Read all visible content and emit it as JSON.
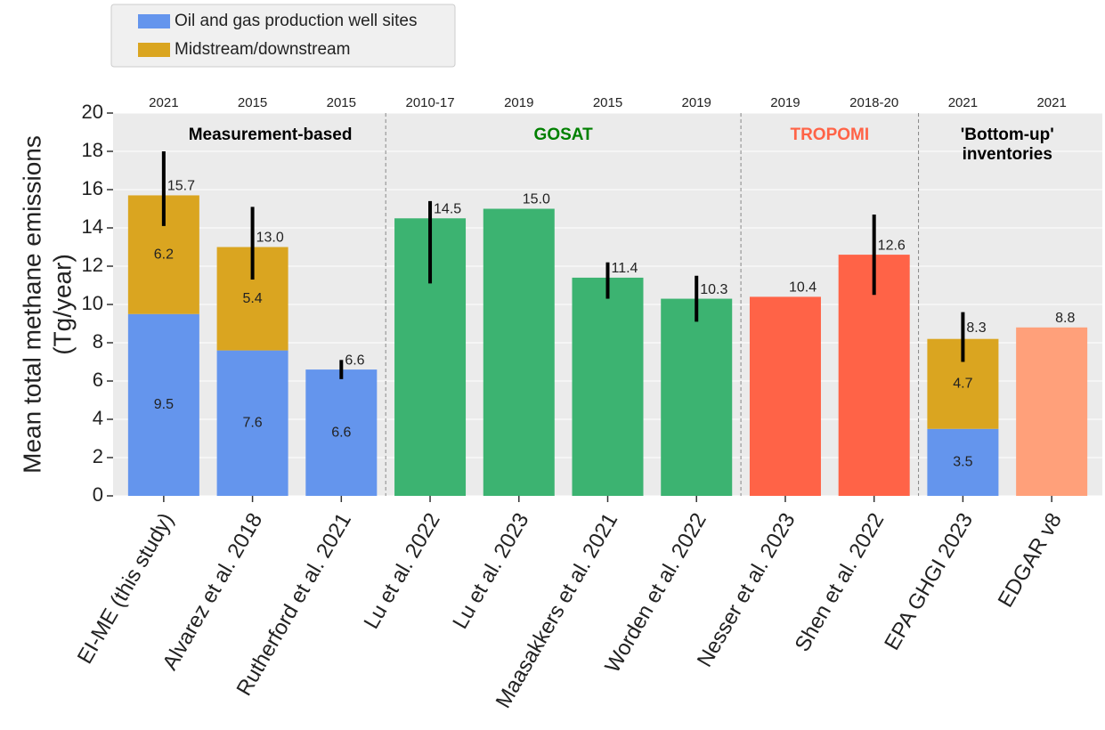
{
  "chart_data": {
    "type": "stacked_bar",
    "ylabel": [
      "Mean total methane emissions",
      "(Tg/year)"
    ],
    "categories": [
      "EI-ME (this study)",
      "Alvarez et al. 2018",
      "Rutherford et al. 2021",
      "Lu et al. 2022",
      "Lu et al. 2023",
      "Maasakkers et al. 2021",
      "Worden et al. 2022",
      "Nesser et al. 2023",
      "Shen et al. 2022",
      "EPA GHGI 2023",
      "EDGAR v8"
    ],
    "years": [
      "2021",
      "2015",
      "2015",
      "2010-17",
      "2019",
      "2015",
      "2019",
      "2019",
      "2018-20",
      "2021",
      "2021"
    ],
    "series": [
      {
        "name": "Oil and gas production well sites",
        "color": "#6495ed",
        "values": [
          9.5,
          7.6,
          6.6,
          null,
          null,
          null,
          null,
          null,
          null,
          3.5,
          null
        ]
      },
      {
        "name": "Midstream/downstream",
        "color": "#daa520",
        "values": [
          6.2,
          5.4,
          null,
          null,
          null,
          null,
          null,
          null,
          null,
          4.7,
          null
        ]
      }
    ],
    "totals": {
      "values": [
        15.7,
        13.0,
        6.6,
        14.5,
        15.0,
        11.4,
        10.3,
        10.4,
        12.6,
        8.3,
        8.8
      ],
      "value_labels": [
        "15.7",
        "13.0",
        "6.6",
        "14.5",
        "15.0",
        "11.4",
        "10.3",
        "10.4",
        "12.6",
        "8.3",
        "8.8"
      ],
      "colors": [
        null,
        null,
        null,
        "#3cb371",
        "#3cb371",
        "#3cb371",
        "#3cb371",
        "#ff6347",
        "#ff6347",
        null,
        "#ffa07a"
      ]
    },
    "errors": [
      [
        14.1,
        18.0
      ],
      [
        11.3,
        15.1
      ],
      [
        6.1,
        7.1
      ],
      [
        11.1,
        15.4
      ],
      null,
      [
        10.3,
        12.2
      ],
      [
        9.1,
        11.5
      ],
      null,
      [
        10.5,
        14.7
      ],
      [
        7.0,
        9.6
      ],
      null
    ],
    "groups": [
      {
        "label": [
          "Measurement-based"
        ],
        "color": "#000000"
      },
      {
        "label": [
          "GOSAT"
        ],
        "color": "#008000"
      },
      {
        "label": [
          "TROPOMI"
        ],
        "color": "#ff6347"
      },
      {
        "label": [
          "'Bottom-up'",
          "inventories"
        ],
        "color": "#000000"
      }
    ],
    "ylim": [
      0,
      20
    ],
    "yticks": [
      0,
      2,
      4,
      6,
      8,
      10,
      12,
      14,
      16,
      18,
      20
    ],
    "grid": true
  }
}
